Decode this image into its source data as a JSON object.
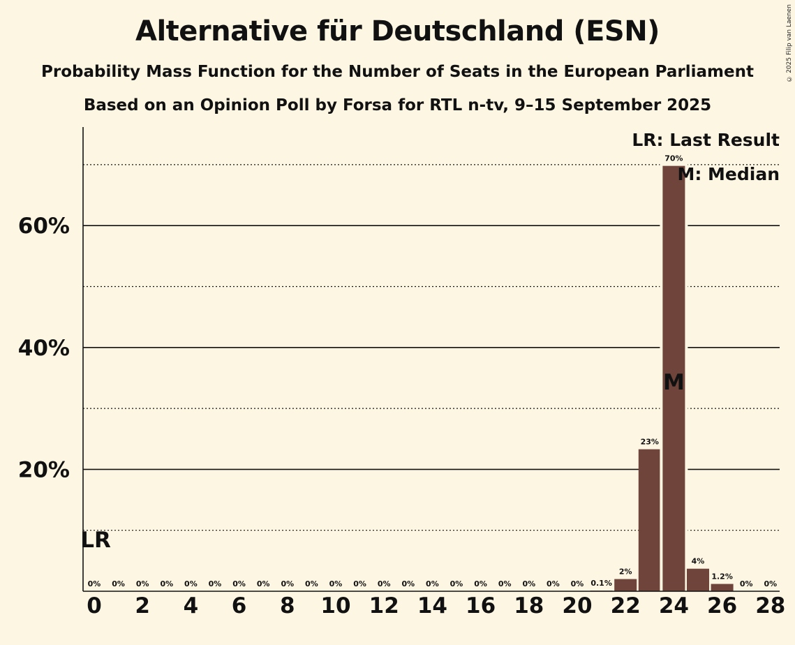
{
  "header": {
    "title": "Alternative für Deutschland (ESN)",
    "subtitle1": "Probability Mass Function for the Number of Seats in the European Parliament",
    "subtitle2": "Based on an Opinion Poll by Forsa for RTL n-tv, 9–15 September 2025",
    "copyright": "© 2025 Filip van Laenen"
  },
  "legend": {
    "last_result": "LR: Last Result",
    "median": "M: Median"
  },
  "markers": {
    "last_result_label": "LR",
    "last_result_seat": 0,
    "median_label": "M",
    "median_seat": 24
  },
  "colors": {
    "background": "#fdf6e3",
    "bar": "#6f443a",
    "axis": "#111111"
  },
  "chart_data": {
    "type": "bar",
    "title": "Alternative für Deutschland (ESN)",
    "xlabel": "",
    "ylabel": "",
    "categories": [
      0,
      1,
      2,
      3,
      4,
      5,
      6,
      7,
      8,
      9,
      10,
      11,
      12,
      13,
      14,
      15,
      16,
      17,
      18,
      19,
      20,
      21,
      22,
      23,
      24,
      25,
      26,
      27,
      28
    ],
    "values": [
      0,
      0,
      0,
      0,
      0,
      0,
      0,
      0,
      0,
      0,
      0,
      0,
      0,
      0,
      0,
      0,
      0,
      0,
      0,
      0,
      0,
      0.1,
      2,
      23.3,
      69.8,
      3.7,
      1.2,
      0,
      0
    ],
    "value_labels": [
      "0%",
      "0%",
      "0%",
      "0%",
      "0%",
      "0%",
      "0%",
      "0%",
      "0%",
      "0%",
      "0%",
      "0%",
      "0%",
      "0%",
      "0%",
      "0%",
      "0%",
      "0%",
      "0%",
      "0%",
      "0%",
      "0.1%",
      "2%",
      "23%",
      "70%",
      "4%",
      "1.2%",
      "0%",
      "0%"
    ],
    "x_tick_values": [
      0,
      2,
      4,
      6,
      8,
      10,
      12,
      14,
      16,
      18,
      20,
      22,
      24,
      26,
      28
    ],
    "x_tick_labels": [
      "0",
      "2",
      "4",
      "6",
      "8",
      "10",
      "12",
      "14",
      "16",
      "18",
      "20",
      "22",
      "24",
      "26",
      "28"
    ],
    "y_tick_values": [
      20,
      40,
      60
    ],
    "y_tick_labels": [
      "20%",
      "40%",
      "60%"
    ],
    "y_gridlines_solid": [
      20,
      40,
      60
    ],
    "y_gridlines_dotted": [
      10,
      30,
      50,
      70
    ],
    "ylim": [
      0,
      76
    ],
    "grid": true,
    "legend_position": "top-right"
  }
}
